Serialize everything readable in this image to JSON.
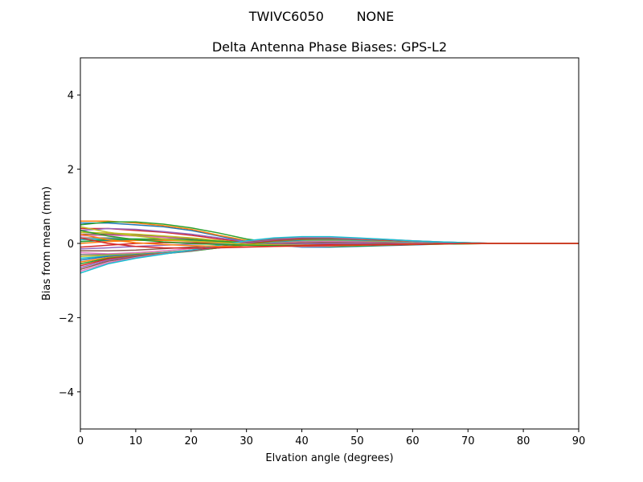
{
  "figure": {
    "suptitle": "TWIVC6050        NONE"
  },
  "chart_data": {
    "type": "line",
    "title": "Delta Antenna Phase Biases: GPS-L2",
    "xlabel": "Elvation angle (degrees)",
    "ylabel": "Bias from mean (mm)",
    "xlim": [
      0,
      90
    ],
    "ylim": [
      -5,
      5
    ],
    "xticks": [
      0,
      10,
      20,
      30,
      40,
      50,
      60,
      70,
      80,
      90
    ],
    "yticks": [
      -4,
      -2,
      0,
      2,
      4
    ],
    "ytick_labels": [
      "−4",
      "−2",
      "0",
      "2",
      "4"
    ],
    "grid": false,
    "legend": "none",
    "x": [
      0,
      5,
      10,
      15,
      20,
      25,
      30,
      35,
      40,
      45,
      50,
      55,
      60,
      65,
      70,
      75,
      80,
      85,
      90
    ],
    "series": [
      {
        "color": "#1f77b4",
        "values": [
          0.55,
          0.55,
          0.5,
          0.45,
          0.35,
          0.2,
          0.05,
          -0.05,
          -0.1,
          -0.1,
          -0.08,
          -0.06,
          -0.04,
          -0.02,
          0.0,
          0.0,
          0.0,
          0.0,
          0.0
        ]
      },
      {
        "color": "#ff7f0e",
        "values": [
          0.6,
          0.6,
          0.55,
          0.48,
          0.38,
          0.22,
          0.08,
          -0.02,
          -0.06,
          -0.07,
          -0.06,
          -0.05,
          -0.03,
          -0.02,
          -0.01,
          0.0,
          0.0,
          0.0,
          0.0
        ]
      },
      {
        "color": "#2ca02c",
        "values": [
          0.5,
          0.58,
          0.58,
          0.52,
          0.42,
          0.28,
          0.12,
          0.02,
          -0.05,
          -0.08,
          -0.07,
          -0.05,
          -0.03,
          -0.02,
          -0.01,
          0.0,
          0.0,
          0.0,
          0.0
        ]
      },
      {
        "color": "#d62728",
        "values": [
          0.4,
          0.4,
          0.35,
          0.3,
          0.22,
          0.12,
          0.03,
          -0.04,
          -0.06,
          -0.06,
          -0.05,
          -0.04,
          -0.03,
          -0.01,
          0.0,
          0.0,
          0.0,
          0.0,
          0.0
        ]
      },
      {
        "color": "#9467bd",
        "values": [
          0.35,
          0.4,
          0.38,
          0.32,
          0.25,
          0.15,
          0.05,
          -0.02,
          -0.05,
          -0.06,
          -0.05,
          -0.03,
          -0.02,
          -0.01,
          0.0,
          0.0,
          0.0,
          0.0,
          0.0
        ]
      },
      {
        "color": "#8c564b",
        "values": [
          0.25,
          0.25,
          0.22,
          0.18,
          0.12,
          0.05,
          -0.02,
          -0.06,
          -0.08,
          -0.07,
          -0.05,
          -0.04,
          -0.02,
          -0.01,
          0.0,
          0.0,
          0.0,
          0.0,
          0.0
        ]
      },
      {
        "color": "#e377c2",
        "values": [
          0.2,
          0.22,
          0.2,
          0.16,
          0.1,
          0.04,
          -0.03,
          -0.07,
          -0.08,
          -0.07,
          -0.05,
          -0.03,
          -0.02,
          -0.01,
          0.0,
          0.0,
          0.0,
          0.0,
          0.0
        ]
      },
      {
        "color": "#7f7f7f",
        "values": [
          0.15,
          0.15,
          0.12,
          0.1,
          0.06,
          0.02,
          -0.02,
          -0.05,
          -0.06,
          -0.05,
          -0.04,
          -0.03,
          -0.02,
          -0.01,
          0.0,
          0.0,
          0.0,
          0.0,
          0.0
        ]
      },
      {
        "color": "#bcbd22",
        "values": [
          0.3,
          0.28,
          0.25,
          0.2,
          0.15,
          0.08,
          0.01,
          -0.04,
          -0.06,
          -0.06,
          -0.05,
          -0.03,
          -0.02,
          -0.01,
          0.0,
          0.0,
          0.0,
          0.0,
          0.0
        ]
      },
      {
        "color": "#17becf",
        "values": [
          0.1,
          0.12,
          0.12,
          0.1,
          0.08,
          0.04,
          0.0,
          -0.03,
          -0.04,
          -0.04,
          -0.03,
          -0.02,
          -0.01,
          0.0,
          0.0,
          0.0,
          0.0,
          0.0,
          0.0
        ]
      },
      {
        "color": "#1f77b4",
        "values": [
          0.05,
          0.08,
          0.1,
          0.1,
          0.08,
          0.05,
          0.02,
          0.0,
          -0.02,
          -0.03,
          -0.03,
          -0.02,
          -0.01,
          0.0,
          0.0,
          0.0,
          0.0,
          0.0,
          0.0
        ]
      },
      {
        "color": "#ff7f0e",
        "values": [
          0.0,
          0.05,
          0.08,
          0.08,
          0.06,
          0.03,
          0.0,
          -0.02,
          -0.03,
          -0.03,
          -0.02,
          -0.02,
          -0.01,
          0.0,
          0.0,
          0.0,
          0.0,
          0.0,
          0.0
        ]
      },
      {
        "color": "#2ca02c",
        "values": [
          0.05,
          0.1,
          0.12,
          0.12,
          0.1,
          0.06,
          0.02,
          -0.01,
          -0.03,
          -0.04,
          -0.03,
          -0.02,
          -0.01,
          0.0,
          0.0,
          0.0,
          0.0,
          0.0,
          0.0
        ]
      },
      {
        "color": "#d62728",
        "values": [
          -0.1,
          -0.05,
          0.0,
          0.02,
          0.02,
          0.0,
          -0.02,
          -0.03,
          -0.03,
          -0.02,
          -0.01,
          0.0,
          0.0,
          0.0,
          0.0,
          0.0,
          0.0,
          0.0,
          0.0
        ]
      },
      {
        "color": "#9467bd",
        "values": [
          -0.15,
          -0.12,
          -0.08,
          -0.05,
          -0.02,
          -0.01,
          -0.02,
          -0.02,
          -0.01,
          0.0,
          0.0,
          0.0,
          0.0,
          0.0,
          0.0,
          0.0,
          0.0,
          0.0,
          0.0
        ]
      },
      {
        "color": "#8c564b",
        "values": [
          -0.2,
          -0.2,
          -0.18,
          -0.14,
          -0.1,
          -0.06,
          -0.03,
          0.0,
          0.02,
          0.03,
          0.03,
          0.02,
          0.02,
          0.01,
          0.0,
          0.0,
          0.0,
          0.0,
          0.0
        ]
      },
      {
        "color": "#e377c2",
        "values": [
          -0.25,
          -0.28,
          -0.25,
          -0.2,
          -0.14,
          -0.08,
          -0.02,
          0.02,
          0.05,
          0.06,
          0.05,
          0.04,
          0.02,
          0.01,
          0.0,
          0.0,
          0.0,
          0.0,
          0.0
        ]
      },
      {
        "color": "#7f7f7f",
        "values": [
          -0.3,
          -0.3,
          -0.28,
          -0.24,
          -0.18,
          -0.1,
          -0.03,
          0.03,
          0.07,
          0.08,
          0.07,
          0.05,
          0.03,
          0.02,
          0.01,
          0.0,
          0.0,
          0.0,
          0.0
        ]
      },
      {
        "color": "#bcbd22",
        "values": [
          -0.35,
          -0.32,
          -0.28,
          -0.24,
          -0.18,
          -0.1,
          -0.02,
          0.04,
          0.08,
          0.09,
          0.08,
          0.06,
          0.04,
          0.02,
          0.01,
          0.0,
          0.0,
          0.0,
          0.0
        ]
      },
      {
        "color": "#17becf",
        "values": [
          -0.4,
          -0.34,
          -0.3,
          -0.25,
          -0.19,
          -0.11,
          -0.03,
          0.04,
          0.09,
          0.1,
          0.09,
          0.07,
          0.04,
          0.02,
          0.01,
          0.0,
          0.0,
          0.0,
          0.0
        ]
      },
      {
        "color": "#1f77b4",
        "values": [
          -0.45,
          -0.35,
          -0.3,
          -0.26,
          -0.2,
          -0.12,
          -0.04,
          0.05,
          0.1,
          0.11,
          0.1,
          0.08,
          0.05,
          0.03,
          0.01,
          0.0,
          0.0,
          0.0,
          0.0
        ]
      },
      {
        "color": "#ff7f0e",
        "values": [
          -0.5,
          -0.38,
          -0.32,
          -0.27,
          -0.2,
          -0.12,
          -0.03,
          0.06,
          0.11,
          0.12,
          0.11,
          0.08,
          0.05,
          0.03,
          0.01,
          0.0,
          0.0,
          0.0,
          0.0
        ]
      },
      {
        "color": "#2ca02c",
        "values": [
          -0.55,
          -0.4,
          -0.33,
          -0.28,
          -0.21,
          -0.12,
          -0.02,
          0.07,
          0.12,
          0.13,
          0.12,
          0.09,
          0.06,
          0.03,
          0.01,
          0.0,
          0.0,
          0.0,
          0.0
        ]
      },
      {
        "color": "#d62728",
        "values": [
          -0.6,
          -0.42,
          -0.34,
          -0.28,
          -0.2,
          -0.1,
          0.0,
          0.08,
          0.13,
          0.14,
          0.12,
          0.09,
          0.06,
          0.03,
          0.01,
          0.0,
          0.0,
          0.0,
          0.0
        ]
      },
      {
        "color": "#9467bd",
        "values": [
          -0.65,
          -0.45,
          -0.35,
          -0.28,
          -0.2,
          -0.1,
          0.02,
          0.1,
          0.15,
          0.15,
          0.13,
          0.1,
          0.06,
          0.03,
          0.01,
          0.0,
          0.0,
          0.0,
          0.0
        ]
      },
      {
        "color": "#8c564b",
        "values": [
          -0.7,
          -0.48,
          -0.36,
          -0.28,
          -0.19,
          -0.08,
          0.04,
          0.12,
          0.16,
          0.16,
          0.14,
          0.1,
          0.07,
          0.04,
          0.02,
          0.0,
          0.0,
          0.0,
          0.0
        ]
      },
      {
        "color": "#e377c2",
        "values": [
          -0.75,
          -0.52,
          -0.38,
          -0.28,
          -0.18,
          -0.06,
          0.06,
          0.14,
          0.17,
          0.17,
          0.14,
          0.11,
          0.07,
          0.04,
          0.02,
          0.0,
          0.0,
          0.0,
          0.0
        ]
      },
      {
        "color": "#17becf",
        "values": [
          -0.8,
          -0.55,
          -0.4,
          -0.29,
          -0.18,
          -0.05,
          0.07,
          0.15,
          0.18,
          0.18,
          0.15,
          0.11,
          0.07,
          0.04,
          0.02,
          0.0,
          0.0,
          0.0,
          0.0
        ]
      },
      {
        "color": "#bcbd22",
        "values": [
          0.45,
          0.3,
          0.2,
          0.12,
          0.06,
          0.02,
          -0.02,
          -0.04,
          -0.05,
          -0.05,
          -0.04,
          -0.03,
          -0.02,
          -0.01,
          0.0,
          0.0,
          0.0,
          0.0,
          0.0
        ]
      },
      {
        "color": "#2ca02c",
        "values": [
          0.35,
          0.2,
          0.1,
          0.04,
          0.0,
          -0.03,
          -0.05,
          -0.06,
          -0.06,
          -0.05,
          -0.04,
          -0.03,
          -0.02,
          -0.01,
          0.0,
          0.0,
          0.0,
          0.0,
          0.0
        ]
      },
      {
        "color": "#ff7f0e",
        "values": [
          0.25,
          0.1,
          0.02,
          -0.03,
          -0.06,
          -0.08,
          -0.09,
          -0.08,
          -0.07,
          -0.06,
          -0.05,
          -0.03,
          -0.02,
          -0.01,
          0.0,
          0.0,
          0.0,
          0.0,
          0.0
        ]
      },
      {
        "color": "#d62728",
        "values": [
          0.15,
          0.0,
          -0.08,
          -0.12,
          -0.13,
          -0.12,
          -0.1,
          -0.08,
          -0.06,
          -0.05,
          -0.04,
          -0.03,
          -0.02,
          -0.01,
          0.0,
          0.0,
          0.0,
          0.0,
          0.0
        ]
      }
    ]
  }
}
